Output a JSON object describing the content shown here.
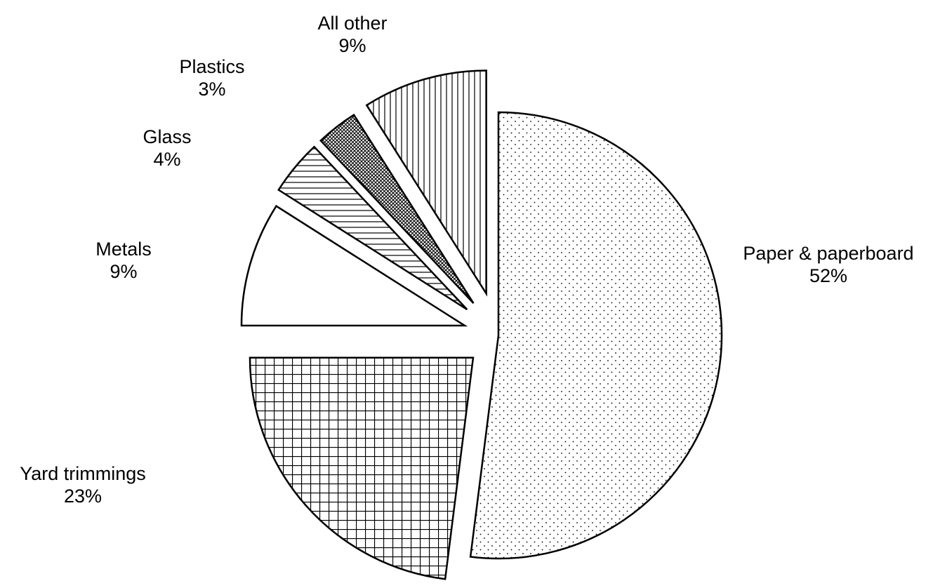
{
  "chart_data": {
    "type": "pie",
    "title": "",
    "start_angle_deg": 0,
    "direction": "clockwise",
    "exploded": true,
    "slices": [
      {
        "name": "Paper & paperboard",
        "value": 52,
        "label": "52%",
        "pattern": "dots"
      },
      {
        "name": "Yard trimmings",
        "value": 23,
        "label": "23%",
        "pattern": "grid"
      },
      {
        "name": "Metals",
        "value": 9,
        "label": "9%",
        "pattern": "none"
      },
      {
        "name": "Glass",
        "value": 4,
        "label": "4%",
        "pattern": "horizontal-lines"
      },
      {
        "name": "Plastics",
        "value": 3,
        "label": "3%",
        "pattern": "crosshatch"
      },
      {
        "name": "All other",
        "value": 9,
        "label": "9%",
        "pattern": "vertical-lines"
      }
    ]
  },
  "colors": {
    "background": "#ffffff",
    "stroke": "#000000",
    "fill": "#ffffff"
  }
}
